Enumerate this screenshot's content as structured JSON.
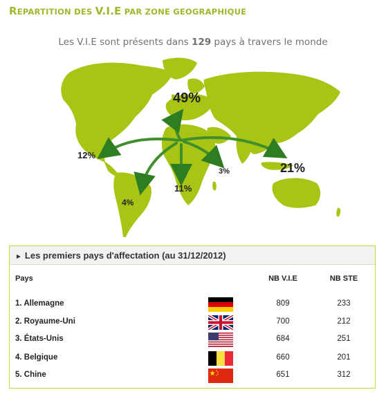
{
  "header": {
    "title_cap1": "R",
    "title_rest1": "EPARTITION DES ",
    "title_vie": "V.I.E",
    "title_rest2": " PAR ZONE GEOGRAPHIQUE"
  },
  "subtitle": {
    "before": "Les V.I.E sont présents dans ",
    "count": "129",
    "after": " pays à travers le monde"
  },
  "map": {
    "land_color": "#a9c414",
    "arrow_color": "#3f8f2c",
    "zones": {
      "europe": "49%",
      "asia": "21%",
      "north_america": "12%",
      "africa": "11%",
      "south_america": "4%",
      "middle_east": "3%"
    }
  },
  "panel": {
    "heading": "Les premiers pays d'affectation (au 31/12/2012)",
    "col_country": "Pays",
    "col_vie": "NB V.I.E",
    "col_ste": "NB STE"
  },
  "rows": [
    {
      "name": "1. Allemagne",
      "vie": "809",
      "ste": "233",
      "flag": "germany-flag-icon"
    },
    {
      "name": "2. Royaume-Uni",
      "vie": "700",
      "ste": "212",
      "flag": "uk-flag-icon"
    },
    {
      "name": "3. États-Unis",
      "vie": "684",
      "ste": "251",
      "flag": "usa-flag-icon"
    },
    {
      "name": "4. Belgique",
      "vie": "660",
      "ste": "201",
      "flag": "belgium-flag-icon"
    },
    {
      "name": "5. Chine",
      "vie": "651",
      "ste": "312",
      "flag": "china-flag-icon"
    }
  ]
}
